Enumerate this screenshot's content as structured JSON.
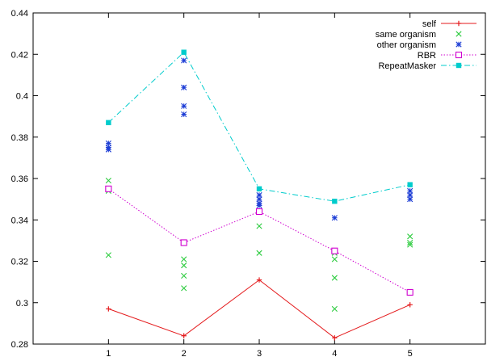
{
  "chart_data": {
    "type": "scatter",
    "x_ticks": [
      "1",
      "2",
      "3",
      "4",
      "5"
    ],
    "y_ticks": [
      "0.28",
      "0.3",
      "0.32",
      "0.34",
      "0.36",
      "0.38",
      "0.4",
      "0.42",
      "0.44"
    ],
    "xlim": [
      0,
      6
    ],
    "ylim": [
      0.28,
      0.44
    ],
    "grid": false,
    "legend_position": "top-right",
    "series": [
      {
        "name": "self",
        "color": "#e41a1c",
        "marker": "plus",
        "line": "solid",
        "points": [
          [
            1,
            0.297
          ],
          [
            2,
            0.284
          ],
          [
            3,
            0.311
          ],
          [
            4,
            0.283
          ],
          [
            5,
            0.299
          ]
        ]
      },
      {
        "name": "same organism",
        "color": "#2ecc40",
        "marker": "cross",
        "line": "none",
        "points": [
          [
            1,
            0.359
          ],
          [
            1,
            0.354
          ],
          [
            1,
            0.323
          ],
          [
            2,
            0.321
          ],
          [
            2,
            0.318
          ],
          [
            2,
            0.313
          ],
          [
            2,
            0.307
          ],
          [
            3,
            0.337
          ],
          [
            3,
            0.324
          ],
          [
            4,
            0.324
          ],
          [
            4,
            0.321
          ],
          [
            4,
            0.312
          ],
          [
            4,
            0.297
          ],
          [
            5,
            0.332
          ],
          [
            5,
            0.329
          ],
          [
            5,
            0.328
          ]
        ]
      },
      {
        "name": "other organism",
        "color": "#1f3fd6",
        "marker": "star",
        "line": "none",
        "points": [
          [
            1,
            0.377
          ],
          [
            1,
            0.375
          ],
          [
            1,
            0.374
          ],
          [
            2,
            0.417
          ],
          [
            2,
            0.404
          ],
          [
            2,
            0.395
          ],
          [
            2,
            0.391
          ],
          [
            3,
            0.352
          ],
          [
            3,
            0.35
          ],
          [
            3,
            0.348
          ],
          [
            3,
            0.347
          ],
          [
            4,
            0.341
          ],
          [
            5,
            0.354
          ],
          [
            5,
            0.352
          ],
          [
            5,
            0.35
          ]
        ]
      },
      {
        "name": "RBR",
        "color": "#d000d0",
        "marker": "open-square",
        "line": "dotted",
        "points": [
          [
            1,
            0.355
          ],
          [
            2,
            0.329
          ],
          [
            3,
            0.344
          ],
          [
            4,
            0.325
          ],
          [
            5,
            0.305
          ]
        ]
      },
      {
        "name": "RepeatMasker",
        "color": "#00cccc",
        "marker": "filled-square",
        "line": "dashdot",
        "points": [
          [
            1,
            0.387
          ],
          [
            2,
            0.421
          ],
          [
            3,
            0.355
          ],
          [
            4,
            0.349
          ],
          [
            5,
            0.357
          ]
        ]
      }
    ]
  }
}
